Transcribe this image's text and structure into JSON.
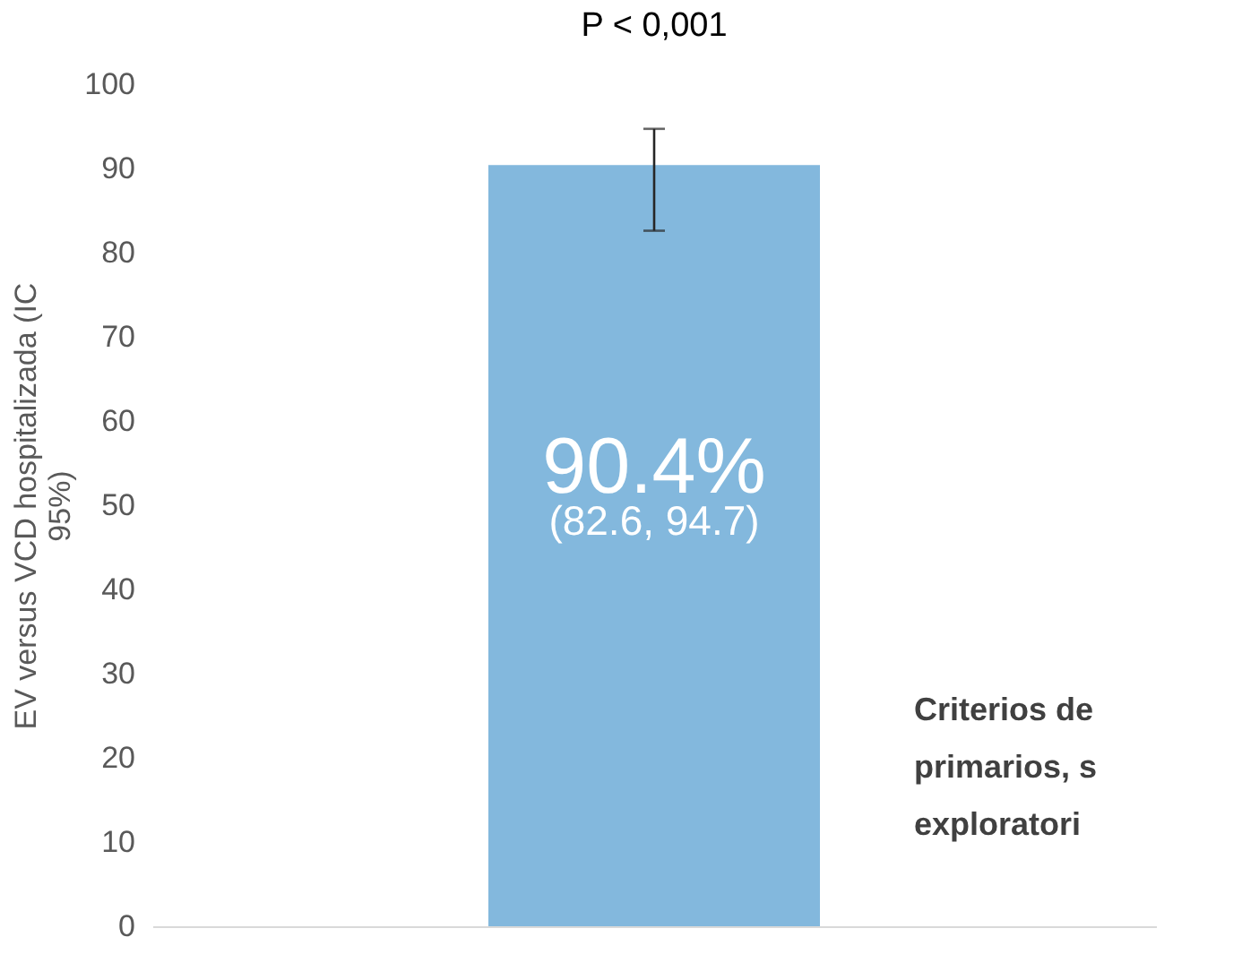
{
  "chart_data": {
    "type": "bar",
    "title": "P < 0,001",
    "ylabel": "EV versus VCD hospitalizada (IC 95%)",
    "categories": [
      null
    ],
    "values": [
      90.4
    ],
    "errors": [
      [
        82.6,
        94.7
      ]
    ],
    "color": "#83b8dd",
    "value_labels": [
      "90.4%"
    ],
    "annotations": [
      "(82.6, 94.7)",
      "Criterios de",
      "primarios, s",
      "exploratori"
    ],
    "ylim": [
      0,
      100
    ],
    "yticks": [
      0,
      10,
      20,
      30,
      40,
      50,
      60,
      70,
      80,
      90,
      100
    ],
    "grid": false
  }
}
